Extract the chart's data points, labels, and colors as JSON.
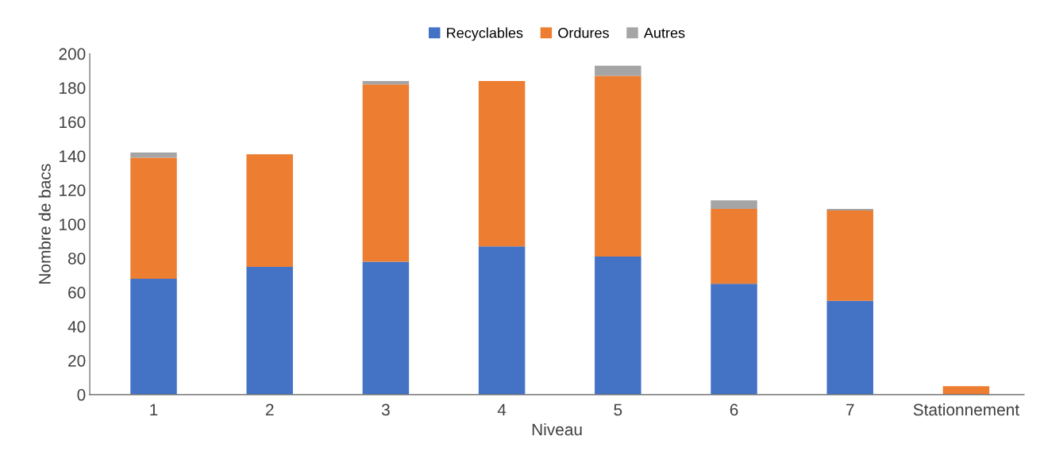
{
  "chart_data": {
    "type": "bar",
    "stacked": true,
    "xlabel": "Niveau",
    "ylabel": "Nombre de bacs",
    "categories": [
      "1",
      "2",
      "3",
      "4",
      "5",
      "6",
      "7",
      "Stationnement"
    ],
    "series": [
      {
        "name": "Recyclables",
        "color": "#4472c4",
        "values": [
          68,
          75,
          78,
          87,
          81,
          65,
          55,
          0
        ]
      },
      {
        "name": "Ordures",
        "color": "#ed7d31",
        "values": [
          71,
          66,
          104,
          97,
          106,
          44,
          53,
          5
        ]
      },
      {
        "name": "Autres",
        "color": "#a5a5a5",
        "values": [
          3,
          0,
          2,
          0,
          6,
          5,
          1,
          0
        ]
      }
    ],
    "ylim": [
      0,
      200
    ],
    "yticks": [
      0,
      20,
      40,
      60,
      80,
      100,
      120,
      140,
      160,
      180,
      200
    ],
    "grid": false,
    "legend": "top"
  }
}
